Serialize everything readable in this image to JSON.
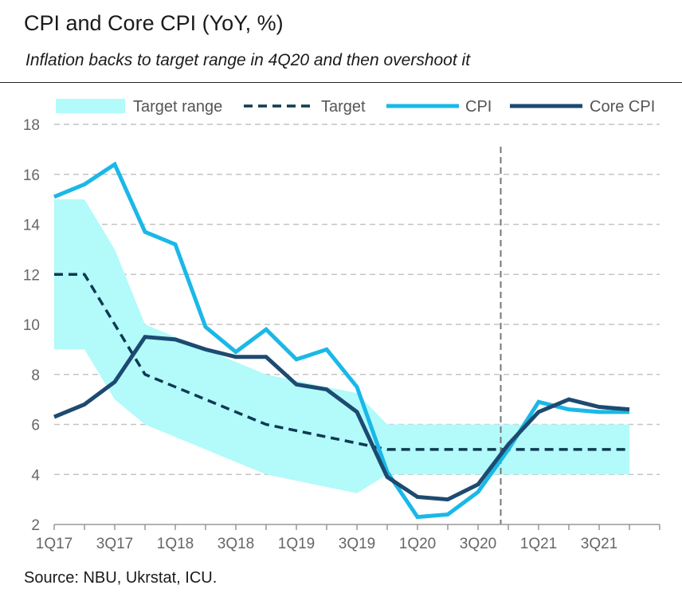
{
  "header": {
    "title": "CPI and Core CPI (YoY, %)",
    "subtitle": "Inflation backs to target range in 4Q20 and then overshoot it"
  },
  "footer": {
    "source": "Source: NBU, Ukrstat, ICU."
  },
  "chart_data": {
    "type": "line",
    "x": [
      "1Q17",
      "2Q17",
      "3Q17",
      "4Q17",
      "1Q18",
      "2Q18",
      "3Q18",
      "4Q18",
      "1Q19",
      "2Q19",
      "3Q19",
      "4Q19",
      "1Q20",
      "2Q20",
      "3Q20",
      "4Q20",
      "1Q21",
      "2Q21",
      "3Q21",
      "4Q21"
    ],
    "x_tick_labels": [
      "1Q17",
      "3Q17",
      "1Q18",
      "3Q18",
      "1Q19",
      "3Q19",
      "1Q20",
      "3Q20",
      "1Q21",
      "3Q21"
    ],
    "ylim": [
      2,
      18
    ],
    "y_ticks": [
      2,
      4,
      6,
      8,
      10,
      12,
      14,
      16,
      18
    ],
    "grid": "horizontal dashed",
    "legend_position": "top",
    "band": {
      "name": "Target range",
      "color": "#b3fafa",
      "lower": [
        9,
        9,
        7,
        6,
        5.5,
        5,
        4.5,
        4,
        3.75,
        3.5,
        3.25,
        4,
        4,
        4,
        4,
        4,
        4,
        4,
        4,
        4
      ],
      "upper": [
        15,
        15,
        13,
        10,
        9.5,
        9,
        8.5,
        8,
        7.75,
        7.5,
        7.25,
        6,
        6,
        6,
        6,
        6,
        6,
        6,
        6,
        6
      ]
    },
    "series": [
      {
        "name": "Target",
        "color": "#0e3a52",
        "style": "dashed",
        "values": [
          12,
          12,
          10,
          8,
          7.5,
          7,
          6.5,
          6,
          5.75,
          5.5,
          5.25,
          5,
          5,
          5,
          5,
          5,
          5,
          5,
          5,
          5
        ]
      },
      {
        "name": "CPI",
        "color": "#1ab8e8",
        "style": "solid",
        "values": [
          15.1,
          15.6,
          16.4,
          13.7,
          13.2,
          9.9,
          8.9,
          9.8,
          8.6,
          9.0,
          7.5,
          4.1,
          2.3,
          2.4,
          3.3,
          5.0,
          6.9,
          6.6,
          6.5,
          6.5
        ]
      },
      {
        "name": "Core CPI",
        "color": "#1d4a70",
        "style": "solid",
        "values": [
          6.3,
          6.8,
          7.7,
          9.5,
          9.4,
          9.0,
          8.7,
          8.7,
          7.6,
          7.4,
          6.5,
          3.9,
          3.1,
          3.0,
          3.6,
          5.2,
          6.5,
          7.0,
          6.7,
          6.6
        ]
      }
    ],
    "vertical_marker": {
      "position": 14.75,
      "color": "#777777",
      "style": "dashed"
    }
  }
}
